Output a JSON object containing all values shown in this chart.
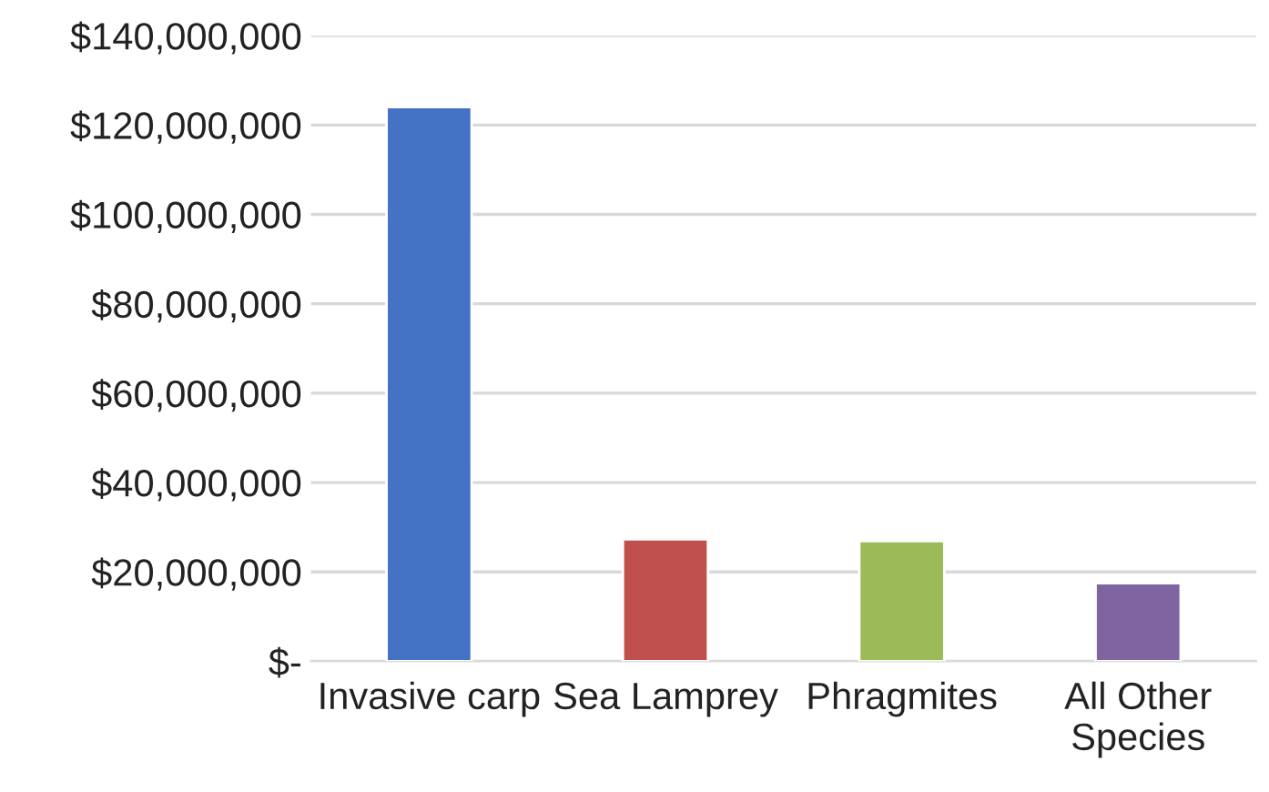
{
  "chart_data": {
    "type": "bar",
    "categories": [
      "Invasive carp",
      "Sea Lamprey",
      "Phragmites",
      "All Other Species"
    ],
    "values": [
      124000000,
      27300000,
      26900000,
      17500000
    ],
    "colors": [
      "#4472c4",
      "#c0504d",
      "#9bbb59",
      "#8064a2"
    ],
    "ylim": [
      0,
      140000000
    ],
    "yticks": [
      {
        "value": 0,
        "label": "$-"
      },
      {
        "value": 20000000,
        "label": "$20,000,000"
      },
      {
        "value": 40000000,
        "label": "$40,000,000"
      },
      {
        "value": 60000000,
        "label": "$60,000,000"
      },
      {
        "value": 80000000,
        "label": "$80,000,000"
      },
      {
        "value": 100000000,
        "label": "$100,000,000"
      },
      {
        "value": 120000000,
        "label": "$120,000,000"
      },
      {
        "value": 140000000,
        "label": "$140,000,000"
      }
    ],
    "grid": "y",
    "legend": false
  }
}
